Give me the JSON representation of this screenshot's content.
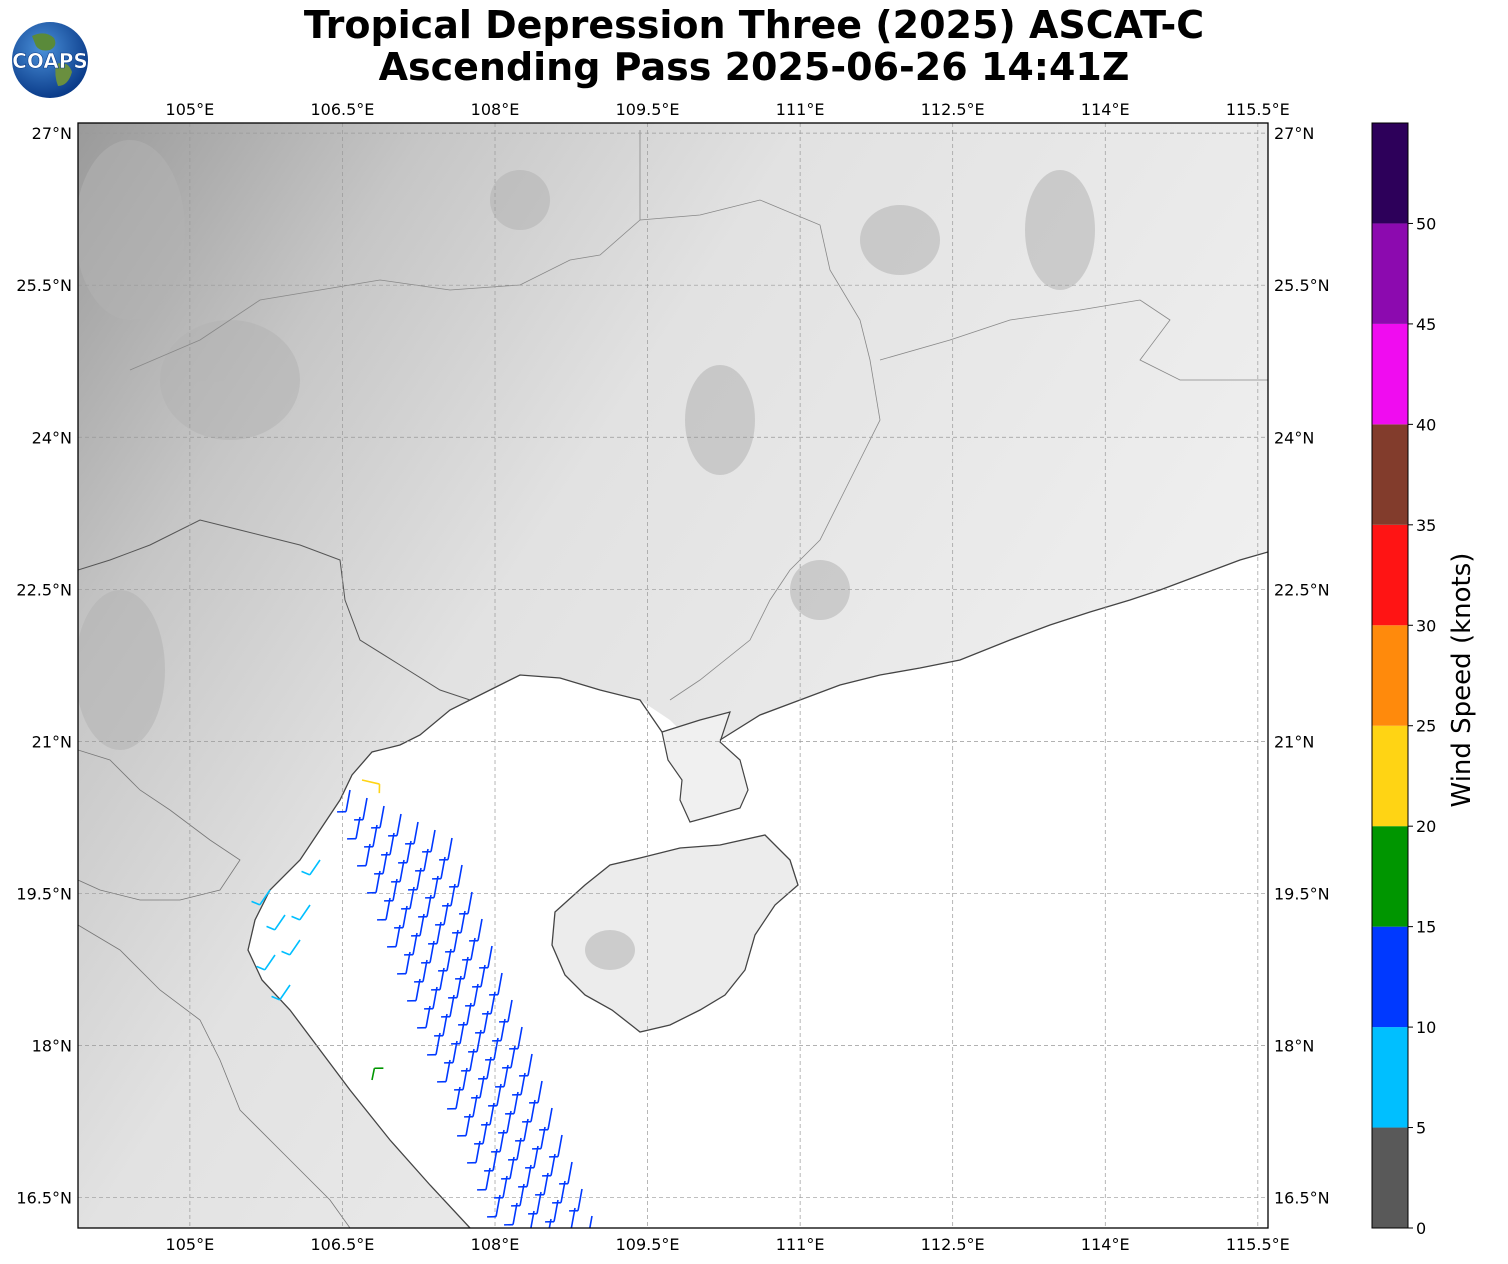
{
  "header": {
    "title_line1": "Tropical Depression Three (2025) ASCAT-C",
    "title_line2": "Ascending Pass 2025-06-26 14:41Z",
    "logo_text": "COAPS"
  },
  "map": {
    "lon_range": [
      103.9,
      115.6
    ],
    "lat_range": [
      16.2,
      27.1
    ],
    "lon_ticks": [
      "105°E",
      "106.5°E",
      "108°E",
      "109.5°E",
      "111°E",
      "112.5°E",
      "114°E",
      "115.5°E"
    ],
    "lon_values": [
      105,
      106.5,
      108,
      109.5,
      111,
      112.5,
      114,
      115.5
    ],
    "lat_ticks": [
      "27°N",
      "25.5°N",
      "24°N",
      "22.5°N",
      "21°N",
      "19.5°N",
      "18°N",
      "16.5°N"
    ],
    "lat_values": [
      27,
      25.5,
      24,
      22.5,
      21,
      19.5,
      18,
      16.5
    ],
    "gridlines": true,
    "basemap": "grayscale terrain"
  },
  "colorbar": {
    "label": "Wind Speed (knots)",
    "tick_labels": [
      "0",
      "5",
      "10",
      "15",
      "20",
      "25",
      "30",
      "35",
      "40",
      "45",
      "50"
    ],
    "bins": [
      {
        "min": 0,
        "max": 5,
        "color": "#595959"
      },
      {
        "min": 5,
        "max": 10,
        "color": "#00bfff"
      },
      {
        "min": 10,
        "max": 15,
        "color": "#0039ff"
      },
      {
        "min": 15,
        "max": 20,
        "color": "#009600"
      },
      {
        "min": 20,
        "max": 25,
        "color": "#ffd414"
      },
      {
        "min": 25,
        "max": 30,
        "color": "#ff8a0c"
      },
      {
        "min": 30,
        "max": 35,
        "color": "#ff1414"
      },
      {
        "min": 35,
        "max": 40,
        "color": "#823c2c"
      },
      {
        "min": 40,
        "max": 45,
        "color": "#f00cf0"
      },
      {
        "min": 45,
        "max": 50,
        "color": "#8c0aaf"
      },
      {
        "min": 50,
        "max": 55,
        "color": "#2d005a"
      }
    ]
  }
}
